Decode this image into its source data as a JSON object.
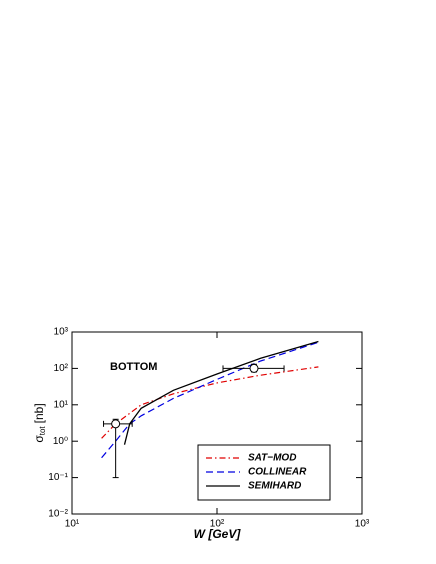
{
  "chart_data": {
    "type": "line",
    "annotation": "BOTTOM",
    "xlabel": "W [GeV]",
    "ylabel": {
      "symbol": "σ",
      "subscript": "tot",
      "unit": "[nb]"
    },
    "log_x": true,
    "log_y": true,
    "xlim": [
      10,
      1000
    ],
    "ylim": [
      0.01,
      1000
    ],
    "xticks": [
      {
        "value": 10,
        "label": "10¹"
      },
      {
        "value": 100,
        "label": "10²"
      },
      {
        "value": 1000,
        "label": "10³"
      }
    ],
    "yticks": [
      {
        "value": 0.01,
        "label": "10⁻²"
      },
      {
        "value": 0.1,
        "label": "10⁻¹"
      },
      {
        "value": 1,
        "label": "10⁰"
      },
      {
        "value": 10,
        "label": "10¹"
      },
      {
        "value": 100,
        "label": "10²"
      },
      {
        "value": 1000,
        "label": "10³"
      }
    ],
    "legend": "lower right",
    "series": [
      {
        "name": "SAT−MOD",
        "color": "#e00000",
        "dash": "6 3 1.5 3",
        "x": [
          16,
          20,
          30,
          50,
          100,
          200,
          500
        ],
        "values": [
          1.2,
          3,
          10,
          20,
          40,
          65,
          110
        ]
      },
      {
        "name": "COLLINEAR",
        "color": "#0000e0",
        "dash": "7 4",
        "x": [
          16,
          20,
          25,
          30,
          50,
          100,
          200,
          500
        ],
        "values": [
          0.35,
          1.0,
          3,
          5,
          15,
          50,
          160,
          520
        ]
      },
      {
        "name": "SEMIHARD",
        "color": "#000000",
        "dash": "none",
        "x": [
          23,
          25,
          30,
          50,
          100,
          200,
          500
        ],
        "values": [
          0.8,
          3,
          8,
          25,
          70,
          190,
          550
        ]
      }
    ],
    "points": {
      "x": [
        20,
        180
      ],
      "values": [
        3,
        100
      ],
      "x_low": [
        16.5,
        110
      ],
      "x_high": [
        26,
        290
      ],
      "y_low": [
        0.1,
        80
      ],
      "y_high": [
        4,
        130
      ]
    }
  }
}
